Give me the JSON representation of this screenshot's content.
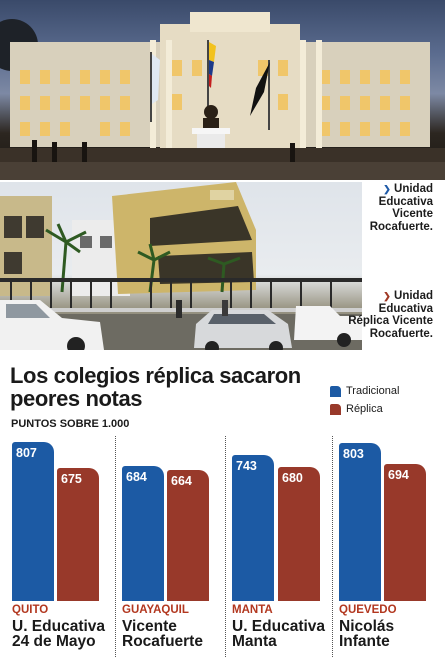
{
  "photos": {
    "photo1": "school-building-night-photo",
    "photo2": "school-building-street-photo",
    "caption_traditional": "Unidad Educativa Vicente Rocafuerte.",
    "caption_replica": "Unidad Educativa Réplica Vicente Rocafuerte."
  },
  "colors": {
    "tradicional": "#1c5aa4",
    "replica": "#98392a"
  },
  "chart_data": {
    "type": "bar",
    "title": "Los colegios réplica sacaron peores notas",
    "subtitle": "PUNTOS SOBRE 1.000",
    "xlabel": "",
    "ylabel": "",
    "legend_position": "top-right",
    "grid": false,
    "categories": [
      {
        "city": "QUITO",
        "school": "U. Educativa 24 de Mayo"
      },
      {
        "city": "GUAYAQUIL",
        "school": "Vicente Rocafuerte"
      },
      {
        "city": "MANTA",
        "school": "U. Educativa Manta"
      },
      {
        "city": "QUEVEDO",
        "school": "Nicolás Infante"
      }
    ],
    "series": [
      {
        "name": "Tradicional",
        "values": [
          807,
          684,
          743,
          803
        ]
      },
      {
        "name": "Réplica",
        "values": [
          675,
          664,
          680,
          694
        ]
      }
    ],
    "ylim": [
      0,
      807
    ]
  }
}
